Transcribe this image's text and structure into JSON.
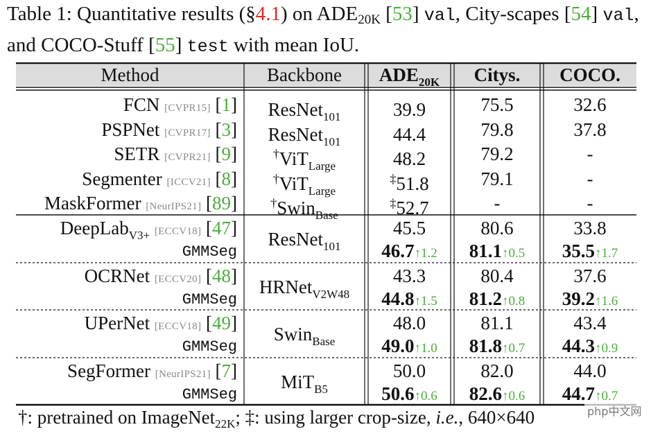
{
  "caption": {
    "prefix": "Table 1: Quantitative results (",
    "section_symbol": "§",
    "section_ref": "4.1",
    "on": ") on ADE",
    "ade_sub": "20K",
    "ref_ade": "53",
    "val1": "val",
    "city_text": ", City-scapes ",
    "ref_city": "54",
    "val2": "val",
    "coco_text": ", and COCO-Stuff ",
    "ref_coco": "55",
    "test": "test",
    "suffix": " with mean IoU."
  },
  "header": {
    "method": "Method",
    "backbone": "Backbone",
    "ade": "ADE",
    "ade_sub": "20K",
    "citys": "Citys.",
    "coco": "COCO."
  },
  "rows_top": [
    {
      "method": "FCN",
      "venue": "[CVPR15]",
      "ref": "1",
      "bb_prefix": "",
      "bb": "ResNet",
      "bb_sub": "101",
      "ade_prefix": "",
      "ade": "39.9",
      "citys": "75.5",
      "coco": "32.6"
    },
    {
      "method": "PSPNet",
      "venue": "[CVPR17]",
      "ref": "3",
      "bb_prefix": "",
      "bb": "ResNet",
      "bb_sub": "101",
      "ade_prefix": "",
      "ade": "44.4",
      "citys": "79.8",
      "coco": "37.8"
    },
    {
      "method": "SETR",
      "venue": "[CVPR21]",
      "ref": "9",
      "bb_prefix": "†",
      "bb": "ViT",
      "bb_sub": "Large",
      "ade_prefix": "",
      "ade": "48.2",
      "citys": "79.2",
      "coco": "-"
    },
    {
      "method": "Segmenter",
      "venue": "[ICCV21]",
      "ref": "8",
      "bb_prefix": "†",
      "bb": "ViT",
      "bb_sub": "Large",
      "ade_prefix": "‡",
      "ade": "51.8",
      "citys": "79.1",
      "coco": "-"
    },
    {
      "method": "MaskFormer",
      "venue": "[NeurIPS21]",
      "ref": "89",
      "bb_prefix": "†",
      "bb": "Swin",
      "bb_sub": "Base",
      "ade_prefix": "‡",
      "ade": "52.7",
      "citys": "-",
      "coco": "-"
    }
  ],
  "groups": [
    {
      "method": "DeepLab",
      "method_sub": "V3+",
      "venue": "[ECCV18]",
      "ref": "47",
      "bb": "ResNet",
      "bb_sub": "101",
      "base": {
        "ade": "45.5",
        "citys": "80.6",
        "coco": "33.8"
      },
      "ours": {
        "name": "GMMSeg",
        "ade": "46.7",
        "ade_gain": "↑1.2",
        "citys": "81.1",
        "citys_gain": "↑0.5",
        "coco": "35.5",
        "coco_gain": "↑1.7"
      }
    },
    {
      "method": "OCRNet",
      "method_sub": "",
      "venue": "[ECCV20]",
      "ref": "48",
      "bb": "HRNet",
      "bb_sub": "V2W48",
      "base": {
        "ade": "43.3",
        "citys": "80.4",
        "coco": "37.6"
      },
      "ours": {
        "name": "GMMSeg",
        "ade": "44.8",
        "ade_gain": "↑1.5",
        "citys": "81.2",
        "citys_gain": "↑0.8",
        "coco": "39.2",
        "coco_gain": "↑1.6"
      }
    },
    {
      "method": "UPerNet",
      "method_sub": "",
      "venue": "[ECCV18]",
      "ref": "49",
      "bb": "Swin",
      "bb_sub": "Base",
      "base": {
        "ade": "48.0",
        "citys": "81.1",
        "coco": "43.4"
      },
      "ours": {
        "name": "GMMSeg",
        "ade": "49.0",
        "ade_gain": "↑1.0",
        "citys": "81.8",
        "citys_gain": "↑0.7",
        "coco": "44.3",
        "coco_gain": "↑0.9"
      }
    },
    {
      "method": "SegFormer",
      "method_sub": "",
      "venue": "[NeurIPS21]",
      "ref": "7",
      "bb": "MiT",
      "bb_sub": "B5",
      "base": {
        "ade": "50.0",
        "citys": "82.0",
        "coco": "44.0"
      },
      "ours": {
        "name": "GMMSeg",
        "ade": "50.6",
        "ade_gain": "↑0.6",
        "citys": "82.6",
        "citys_gain": "↑0.6",
        "coco": "44.7",
        "coco_gain": "↑0.7"
      }
    }
  ],
  "footnote": {
    "dagger": "†: pretrained on ImageNet",
    "dagger_sub": "22K",
    "ddagger": "; ‡: using larger crop-size, ",
    "ie": "i.e.",
    "size": ", 640×640"
  },
  "watermark": "php中文网",
  "colors": {
    "link_red": "#e8271c",
    "link_green": "#4caf3a",
    "venue_gray": "#888888"
  }
}
